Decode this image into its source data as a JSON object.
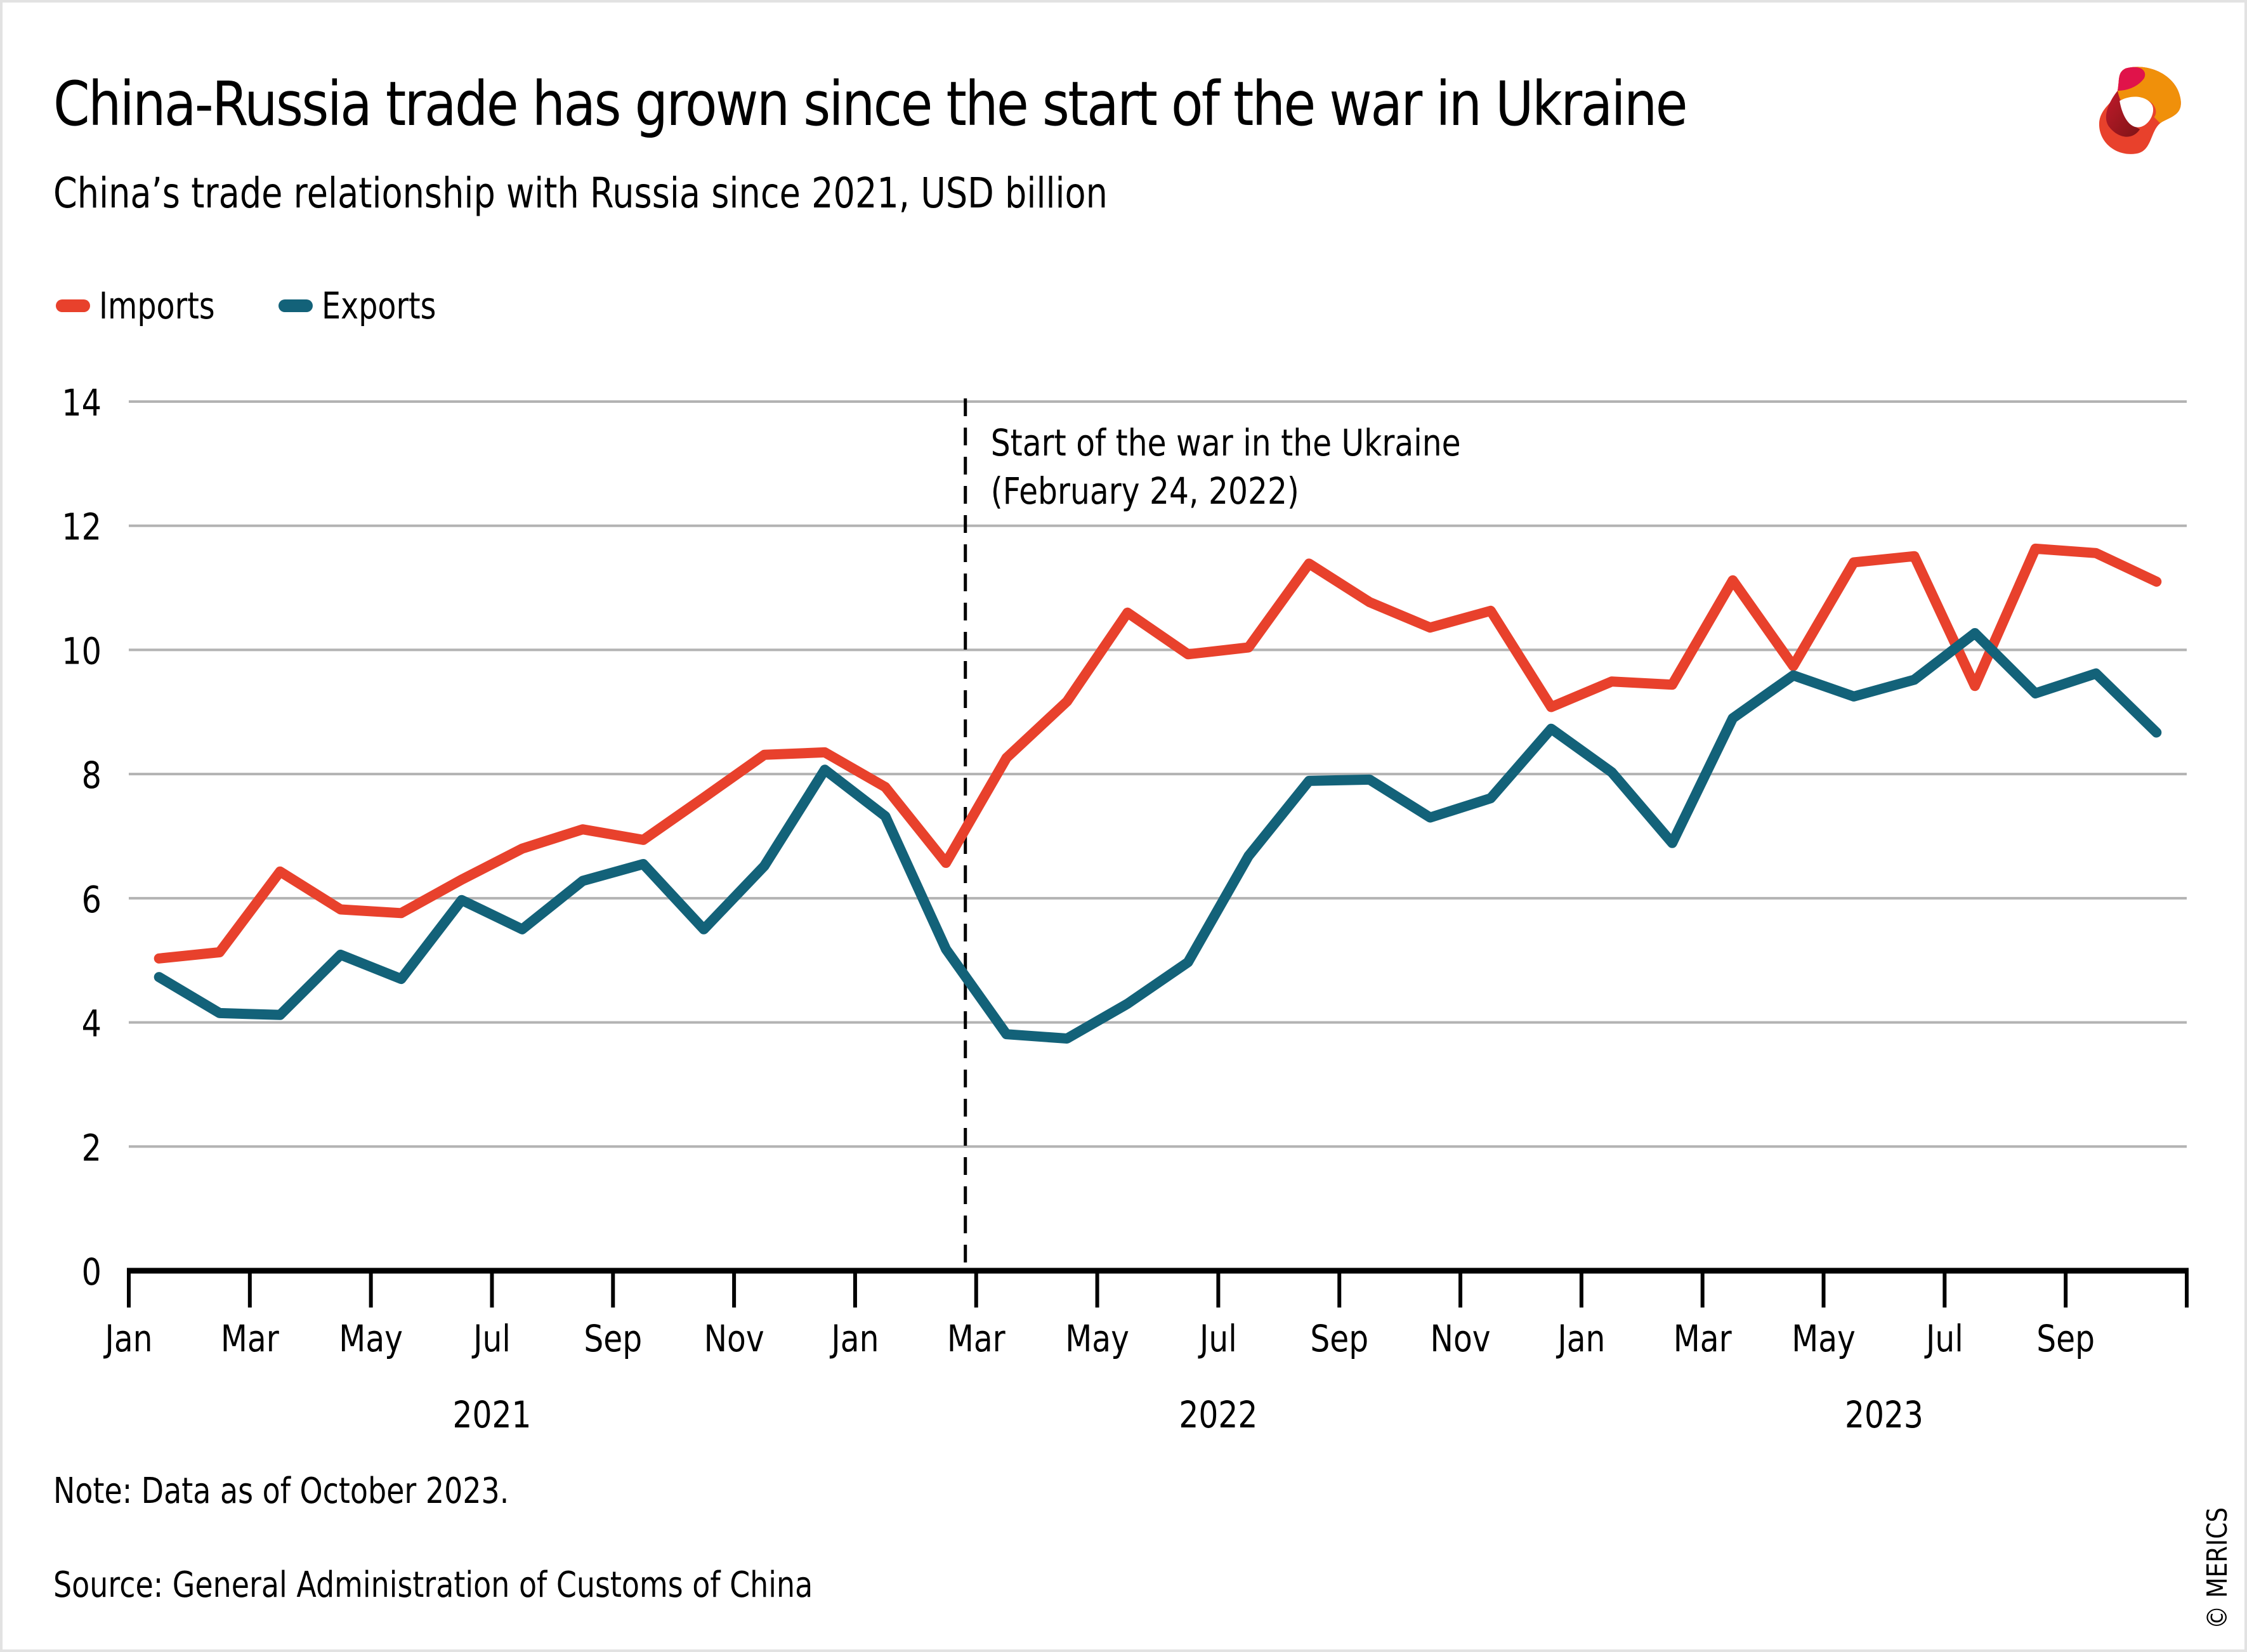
{
  "header": {
    "title": "China-Russia trade has grown since the start of the war in Ukraine",
    "subtitle": "China’s trade relationship with Russia since 2021, USD billion",
    "logo": "merics-logo-icon"
  },
  "legend": [
    {
      "label": "Imports",
      "color": "#e8412c"
    },
    {
      "label": "Exports",
      "color": "#136279"
    }
  ],
  "footer": {
    "note": "Note: Data as of October 2023.",
    "source": "Source: General Administration of Customs of China",
    "copyright": "© MERICS"
  },
  "chart_data": {
    "type": "line",
    "title": "China-Russia trade has grown since the start of the war in Ukraine",
    "subtitle": "China’s trade relationship with Russia since 2021, USD billion",
    "xlabel": "",
    "ylabel": "USD billion",
    "ylim": [
      0,
      14
    ],
    "yticks": [
      0,
      2,
      4,
      6,
      8,
      10,
      12,
      14
    ],
    "grid": true,
    "legend_position": "top-left",
    "x": [
      "2021-01",
      "2021-02",
      "2021-03",
      "2021-04",
      "2021-05",
      "2021-06",
      "2021-07",
      "2021-08",
      "2021-09",
      "2021-10",
      "2021-11",
      "2021-12",
      "2022-01",
      "2022-02",
      "2022-03",
      "2022-04",
      "2022-05",
      "2022-06",
      "2022-07",
      "2022-08",
      "2022-09",
      "2022-10",
      "2022-11",
      "2022-12",
      "2023-01",
      "2023-02",
      "2023-03",
      "2023-04",
      "2023-05",
      "2023-06",
      "2023-07",
      "2023-08",
      "2023-09",
      "2023-10"
    ],
    "xtick_labels": [
      "Jan",
      "Mar",
      "May",
      "Jul",
      "Sep",
      "Nov",
      "Jan",
      "Mar",
      "May",
      "Jul",
      "Sep",
      "Nov",
      "Jan",
      "Mar",
      "May",
      "Jul",
      "Sep"
    ],
    "year_labels": [
      "2021",
      "2022",
      "2023"
    ],
    "series": [
      {
        "name": "Imports",
        "color": "#e8412c",
        "values": [
          5.03,
          5.13,
          6.43,
          5.82,
          5.76,
          6.3,
          6.8,
          7.11,
          6.94,
          7.62,
          8.31,
          8.35,
          7.79,
          6.57,
          8.26,
          9.17,
          10.6,
          9.93,
          10.04,
          11.39,
          10.77,
          10.36,
          10.63,
          9.08,
          9.49,
          9.44,
          11.12,
          9.74,
          11.41,
          11.51,
          9.42,
          11.63,
          11.56,
          11.1
        ]
      },
      {
        "name": "Exports",
        "color": "#136279",
        "values": [
          4.73,
          4.15,
          4.12,
          5.09,
          4.7,
          5.97,
          5.5,
          6.28,
          6.55,
          5.5,
          6.52,
          8.07,
          7.32,
          5.18,
          3.81,
          3.74,
          4.3,
          4.97,
          6.68,
          7.89,
          7.91,
          7.3,
          7.61,
          8.73,
          8.03,
          6.89,
          8.9,
          9.59,
          9.25,
          9.52,
          10.27,
          9.3,
          9.62,
          8.67
        ]
      }
    ],
    "annotations": [
      {
        "type": "vertical-dashed-line",
        "x": "2022-02-24",
        "text": [
          "Start of the war in the Ukraine",
          "(February 24, 2022)"
        ]
      }
    ]
  }
}
